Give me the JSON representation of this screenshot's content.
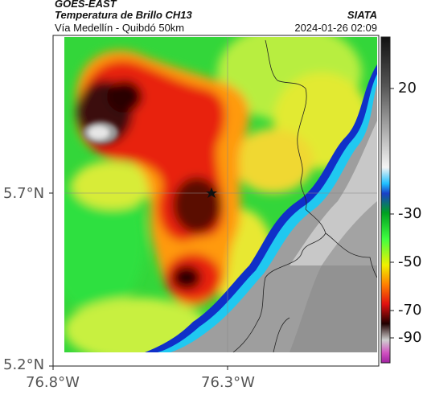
{
  "header": {
    "satellite": "GOES-EAST",
    "product": "Temperatura de Brillo CH13",
    "subtitle": "Vía Medellín - Quibdó 50km",
    "agency": "SIATA",
    "timestamp": "2024-01-26 02:09"
  },
  "axes": {
    "lat_labels": [
      "5.7°N",
      "5.2°N"
    ],
    "lon_labels": [
      "76.8°W",
      "76.3°W"
    ]
  },
  "colorbar": {
    "labels": [
      "20",
      "-30",
      "-50",
      "-70",
      "-90"
    ]
  },
  "marker": {
    "type": "star-icon"
  },
  "colors": {
    "warm_gray": "#a8a8a8",
    "very_cold": "#1a0505",
    "red": "#e02010",
    "orange": "#ff9a00",
    "yellow": "#f2ee30",
    "green": "#2ee23a",
    "cyan": "#20c8e8",
    "blue": "#1030c0"
  }
}
